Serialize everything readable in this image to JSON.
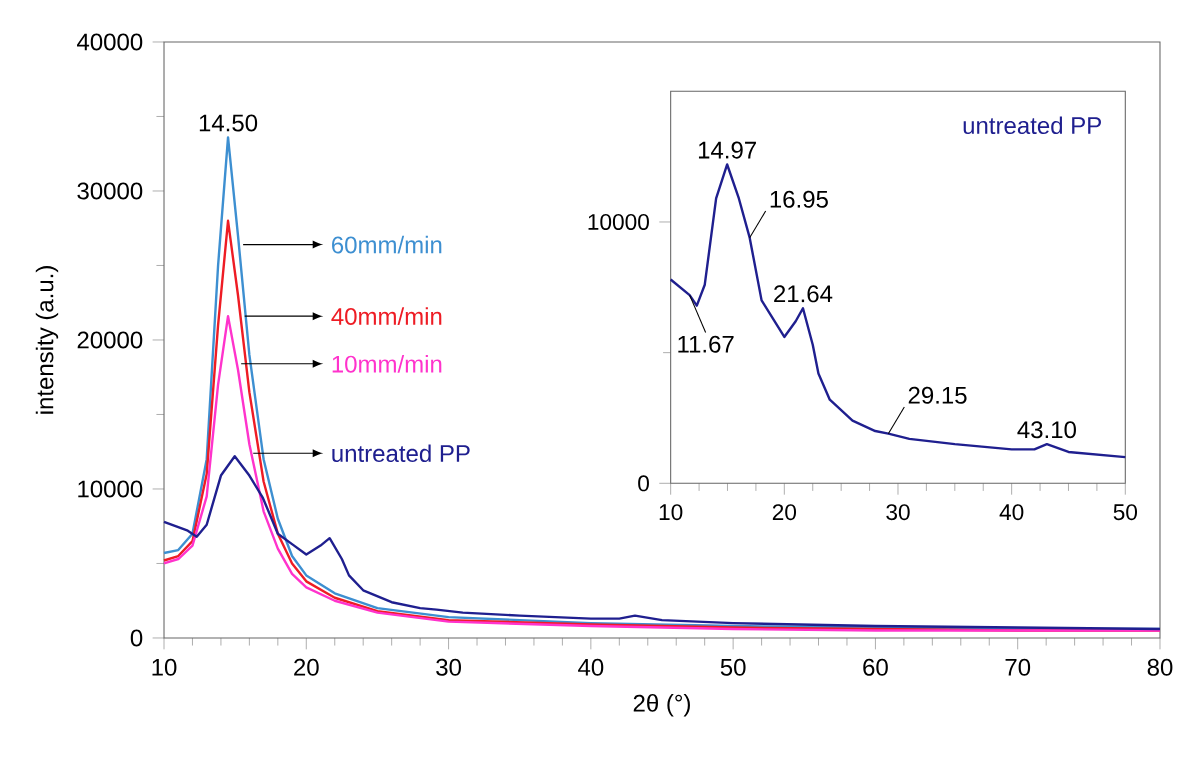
{
  "chart_data": [
    {
      "type": "line",
      "xlabel": "2θ (°)",
      "ylabel": "intensity (a.u.)",
      "xlim": [
        10,
        80
      ],
      "ylim": [
        0,
        40000
      ],
      "xticks": [
        10,
        20,
        30,
        40,
        50,
        60,
        70,
        80
      ],
      "yticks": [
        0,
        10000,
        20000,
        30000,
        40000
      ],
      "legend": false,
      "grid": false,
      "marker": "none",
      "line_style": "solid",
      "annotations": [
        {
          "text": "14.50",
          "x": 14.5,
          "y": 33600
        }
      ],
      "series": [
        {
          "name": "60mm/min",
          "color": "#3d8fd1",
          "x": [
            10,
            11,
            12,
            13,
            13.8,
            14.5,
            15.2,
            16,
            17,
            18,
            19,
            20,
            22,
            25,
            30,
            40,
            50,
            60,
            70,
            80
          ],
          "values": [
            5700,
            5900,
            7000,
            12000,
            25000,
            33600,
            27000,
            19000,
            12000,
            8000,
            5500,
            4200,
            3000,
            2000,
            1400,
            1000,
            800,
            700,
            600,
            600
          ]
        },
        {
          "name": "40mm/min",
          "color": "#ee1c24",
          "x": [
            10,
            11,
            12,
            13,
            13.8,
            14.5,
            15.2,
            16,
            17,
            18,
            19,
            20,
            22,
            25,
            30,
            40,
            50,
            60,
            70,
            80
          ],
          "values": [
            5200,
            5500,
            6500,
            11000,
            21000,
            28000,
            23000,
            16500,
            10500,
            7000,
            5000,
            3800,
            2700,
            1800,
            1200,
            900,
            700,
            600,
            500,
            500
          ]
        },
        {
          "name": "10mm/min",
          "color": "#ff33cc",
          "x": [
            10,
            11,
            12,
            13,
            13.8,
            14.5,
            15.2,
            16,
            17,
            18,
            19,
            20,
            22,
            25,
            30,
            40,
            50,
            60,
            70,
            80
          ],
          "values": [
            5000,
            5300,
            6200,
            9500,
            17000,
            21600,
            18000,
            13000,
            8500,
            6000,
            4300,
            3400,
            2500,
            1700,
            1100,
            800,
            600,
            500,
            500,
            500
          ]
        },
        {
          "name": "untreated PP",
          "color": "#1f1f8f",
          "x": [
            10,
            11.67,
            12.3,
            13,
            14,
            14.97,
            16,
            16.95,
            18,
            19,
            20,
            21,
            21.64,
            22.5,
            23,
            24,
            26,
            28,
            29.15,
            31,
            35,
            40,
            42,
            43.1,
            45,
            50,
            60,
            70,
            80
          ],
          "values": [
            7800,
            7200,
            6800,
            7600,
            10900,
            12200,
            10900,
            9400,
            7000,
            6300,
            5600,
            6200,
            6700,
            5300,
            4200,
            3200,
            2400,
            2000,
            1900,
            1700,
            1500,
            1300,
            1300,
            1500,
            1200,
            1000,
            800,
            700,
            600
          ]
        }
      ]
    },
    {
      "type": "line",
      "xlim": [
        10,
        50
      ],
      "ylim": [
        0,
        15000
      ],
      "xticks": [
        10,
        20,
        30,
        40,
        50
      ],
      "yticks": [
        0,
        10000
      ],
      "legend": false,
      "grid": false,
      "marker": "none",
      "line_style": "solid",
      "annotations": [
        {
          "text": "14.97",
          "x": 14.97,
          "y": 12200
        },
        {
          "text": "16.95",
          "x": 16.95,
          "y": 9400
        },
        {
          "text": "11.67",
          "x": 11.67,
          "y": 7200
        },
        {
          "text": "21.64",
          "x": 21.64,
          "y": 6700
        },
        {
          "text": "29.15",
          "x": 29.15,
          "y": 1900
        },
        {
          "text": "43.10",
          "x": 43.1,
          "y": 1500
        }
      ],
      "series": [
        {
          "name": "untreated PP",
          "color": "#1f1f8f",
          "x": [
            10,
            11.67,
            12.3,
            13,
            14,
            14.97,
            16,
            16.95,
            18,
            19,
            20,
            21,
            21.64,
            22.5,
            23,
            24,
            26,
            28,
            29.15,
            31,
            35,
            40,
            42,
            43.1,
            45,
            50
          ],
          "values": [
            7800,
            7200,
            6800,
            7600,
            10900,
            12200,
            10900,
            9400,
            7000,
            6300,
            5600,
            6200,
            6700,
            5300,
            4200,
            3200,
            2400,
            2000,
            1900,
            1700,
            1500,
            1300,
            1300,
            1500,
            1200,
            1000
          ]
        }
      ]
    }
  ]
}
